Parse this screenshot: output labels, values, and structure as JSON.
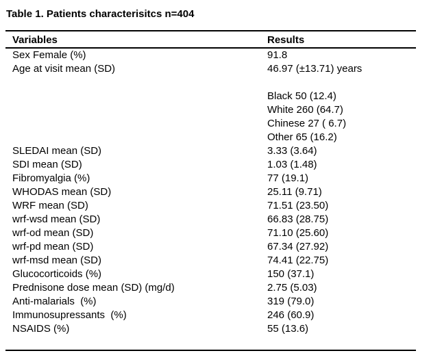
{
  "title": "Table 1. Patients characterisitcs n=404",
  "table": {
    "headers": {
      "variables": "Variables",
      "results": "Results"
    },
    "rows": [
      {
        "variable": "Sex Female (%)",
        "result": "91.8"
      },
      {
        "variable": "Age at visit mean (SD)",
        "result": "46.97 (±13.71) years"
      },
      {
        "variable": "",
        "result": ""
      },
      {
        "variable": "",
        "result": "Black 50 (12.4)"
      },
      {
        "variable": "",
        "result": "White 260 (64.7)"
      },
      {
        "variable": "",
        "result": "Chinese 27 ( 6.7)"
      },
      {
        "variable": "",
        "result": "Other 65 (16.2)"
      },
      {
        "variable": "SLEDAI mean (SD)",
        "result": "3.33 (3.64)"
      },
      {
        "variable": "SDI mean (SD)",
        "result": "1.03 (1.48)"
      },
      {
        "variable": "Fibromyalgia (%)",
        "result": "77 (19.1)"
      },
      {
        "variable": "WHODAS mean (SD)",
        "result": "25.11 (9.71)"
      },
      {
        "variable": "WRF mean (SD)",
        "result": "71.51 (23.50)"
      },
      {
        "variable": "wrf-wsd mean (SD)",
        "result": "66.83 (28.75)"
      },
      {
        "variable": "wrf-od mean (SD)",
        "result": "71.10 (25.60)"
      },
      {
        "variable": "wrf-pd mean (SD)",
        "result": "67.34 (27.92)"
      },
      {
        "variable": "wrf-msd mean (SD)",
        "result": "74.41 (22.75)"
      },
      {
        "variable": "Glucocorticoids (%)",
        "result": "150 (37.1)"
      },
      {
        "variable": "Prednisone dose mean (SD) (mg/d)",
        "result": "2.75 (5.03)"
      },
      {
        "variable": "Anti-malarials  (%)",
        "result": "319 (79.0)"
      },
      {
        "variable": "Immunosupressants  (%)",
        "result": "246 (60.9)"
      },
      {
        "variable": "NSAIDS (%)",
        "result": "55 (13.6)"
      },
      {
        "variable": "",
        "result": ""
      }
    ]
  }
}
